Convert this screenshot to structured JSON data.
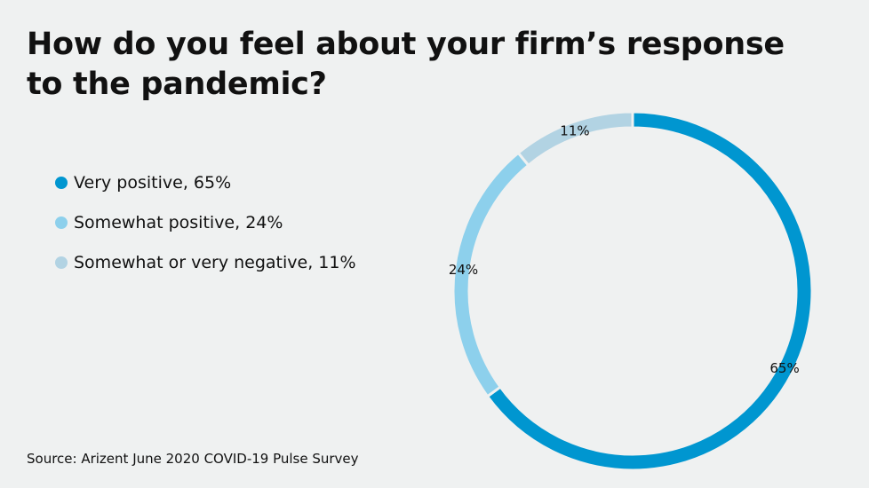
{
  "chart_data": {
    "type": "pie",
    "title": "How do you feel about your firm’s response to the pandemic?",
    "donut": true,
    "categories": [
      "Very positive",
      "Somewhat positive",
      "Somewhat or very negative"
    ],
    "values": [
      65,
      24,
      11
    ],
    "colors": [
      "#0096d0",
      "#8dd0ec",
      "#b2d3e3"
    ],
    "data_labels": [
      "65%",
      "24%",
      "11%"
    ],
    "legend": {
      "placement": "left",
      "entries": [
        "Very positive, 65%",
        "Somewhat positive, 24%",
        "Somewhat or very negative, 11%"
      ]
    },
    "source": "Source: Arizent June 2020 COVID-19 Pulse Survey"
  }
}
